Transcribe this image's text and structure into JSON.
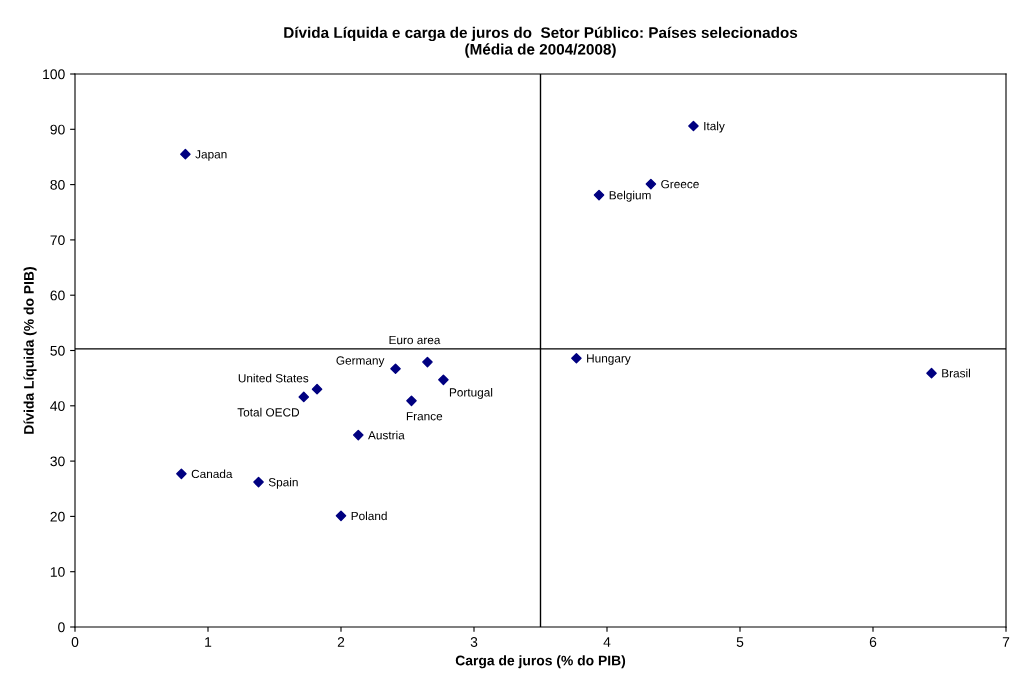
{
  "chart_data": {
    "type": "scatter",
    "title": "Dívida Líquida e carga de juros do  Setor Público: Países selecionados\n(Média de 2004/2008)",
    "xlabel": "Carga de juros (% do PIB)",
    "ylabel": "Dívida Líquida (% do PIB)",
    "xlim": [
      0,
      7
    ],
    "xticks": [
      0,
      1,
      2,
      3,
      4,
      5,
      6,
      7
    ],
    "ylim": [
      0,
      100
    ],
    "yticks": [
      0,
      10,
      20,
      30,
      40,
      50,
      60,
      70,
      80,
      90,
      100
    ],
    "grid": false,
    "legend": false,
    "marker": "diamond",
    "series": [
      {
        "color": "#000080",
        "x": [
          0.83,
          4.65,
          4.33,
          3.94,
          3.77,
          6.44,
          2.65,
          2.41,
          2.77,
          2.53,
          1.82,
          1.72,
          2.13,
          0.8,
          1.38,
          2.0
        ],
        "values": [
          85.5,
          90.6,
          80.1,
          78.1,
          48.6,
          45.9,
          47.9,
          46.7,
          44.7,
          40.9,
          43.0,
          41.6,
          34.7,
          27.7,
          26.2,
          20.1
        ]
      }
    ],
    "annotations": [
      {
        "text": "Japan",
        "x": 0.83,
        "y": 85.5
      },
      {
        "text": "Italy",
        "x": 4.65,
        "y": 90.6
      },
      {
        "text": "Greece",
        "x": 4.33,
        "y": 80.1
      },
      {
        "text": "Belgium",
        "x": 3.94,
        "y": 78.1
      },
      {
        "text": "Hungary",
        "x": 3.77,
        "y": 48.6
      },
      {
        "text": "Brasil",
        "x": 6.44,
        "y": 45.9
      },
      {
        "text": "Euro area",
        "x": 2.65,
        "y": 47.9
      },
      {
        "text": "Germany",
        "x": 2.41,
        "y": 46.7
      },
      {
        "text": "Portugal",
        "x": 2.77,
        "y": 44.7
      },
      {
        "text": "France",
        "x": 2.53,
        "y": 40.9
      },
      {
        "text": "United States",
        "x": 1.82,
        "y": 43.0
      },
      {
        "text": "Total OECD",
        "x": 1.72,
        "y": 41.6
      },
      {
        "text": "Austria",
        "x": 2.13,
        "y": 34.7
      },
      {
        "text": "Canada",
        "x": 0.8,
        "y": 27.7
      },
      {
        "text": "Spain",
        "x": 1.38,
        "y": 26.2
      },
      {
        "text": "Poland",
        "x": 2.0,
        "y": 20.1
      }
    ],
    "ref_lines": [
      {
        "axis": "x",
        "value": 3.5,
        "color": "#000000"
      },
      {
        "axis": "y",
        "value": 50.3,
        "color": "#000000"
      }
    ]
  }
}
